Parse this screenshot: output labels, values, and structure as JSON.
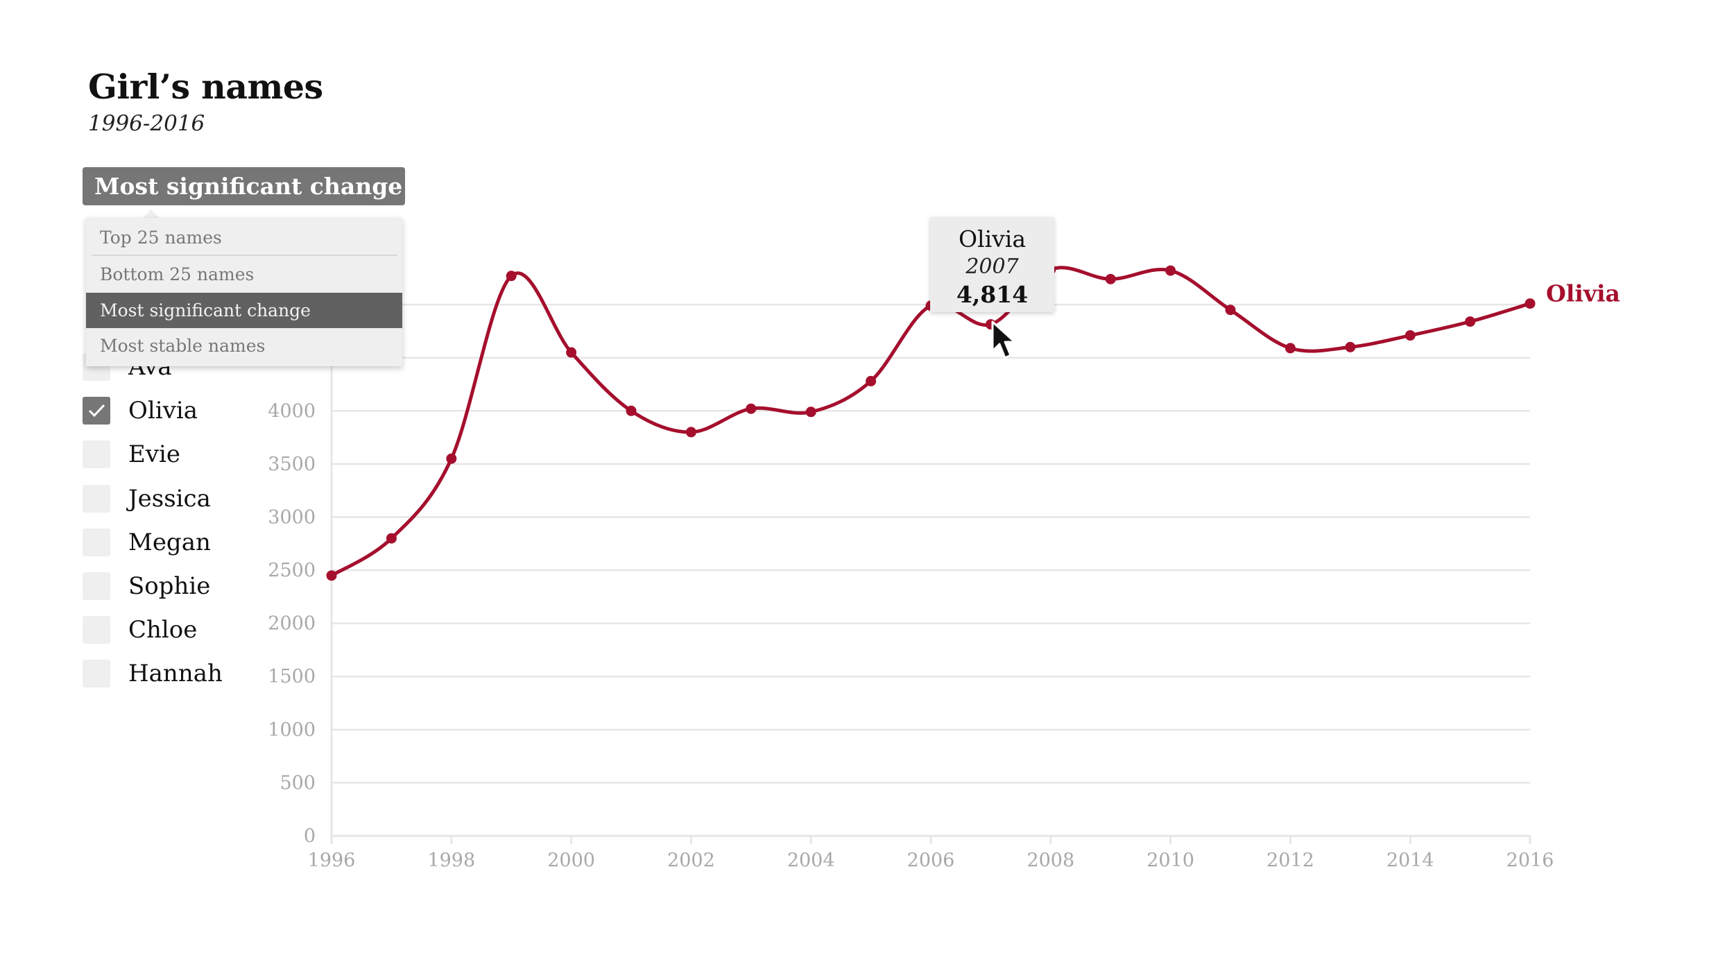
{
  "title": "Girl’s names",
  "subtitle": "1996-2016",
  "dropdown": {
    "selected": "Most significant change",
    "options": [
      "Top 25 names",
      "Bottom 25 names",
      "Most significant change",
      "Most stable names"
    ]
  },
  "names": [
    {
      "label": "Ava",
      "checked": false
    },
    {
      "label": "Olivia",
      "checked": true
    },
    {
      "label": "Evie",
      "checked": false
    },
    {
      "label": "Jessica",
      "checked": false
    },
    {
      "label": "Megan",
      "checked": false
    },
    {
      "label": "Sophie",
      "checked": false
    },
    {
      "label": "Chloe",
      "checked": false
    },
    {
      "label": "Hannah",
      "checked": false
    }
  ],
  "tooltip": {
    "name": "Olivia",
    "year": "2007",
    "value": "4,814"
  },
  "colors": {
    "series": "#a50f2d",
    "grid": "#e6e6e6",
    "axis_text": "#a8a8a8",
    "control": "#767676"
  },
  "icons": [
    "chevron-down-icon",
    "checkmark-icon",
    "cursor-icon"
  ],
  "chart_data": {
    "type": "line",
    "title": "Girl’s names",
    "subtitle": "1996-2016",
    "xlabel": "",
    "ylabel": "",
    "xlim": [
      1996,
      2016
    ],
    "ylim": [
      0,
      5000
    ],
    "x_ticks": [
      1996,
      1998,
      2000,
      2002,
      2004,
      2006,
      2008,
      2010,
      2012,
      2014,
      2016
    ],
    "y_ticks": [
      0,
      500,
      1000,
      1500,
      2000,
      2500,
      3000,
      3500,
      4000
    ],
    "grid": "horizontal",
    "series": [
      {
        "name": "Olivia",
        "color": "#a50f2d",
        "x": [
          1996,
          1997,
          1998,
          1999,
          2000,
          2001,
          2002,
          2003,
          2004,
          2005,
          2006,
          2007,
          2008,
          2009,
          2010,
          2011,
          2012,
          2013,
          2014,
          2015,
          2016
        ],
        "y": [
          2450,
          2800,
          3550,
          5270,
          4550,
          4000,
          3800,
          4020,
          3990,
          4280,
          4990,
          4814,
          5330,
          5240,
          5320,
          4950,
          4590,
          4600,
          4710,
          4840,
          5010
        ]
      }
    ],
    "annotations": [
      {
        "series": "Olivia",
        "x": 2007,
        "value": "4,814"
      }
    ]
  }
}
